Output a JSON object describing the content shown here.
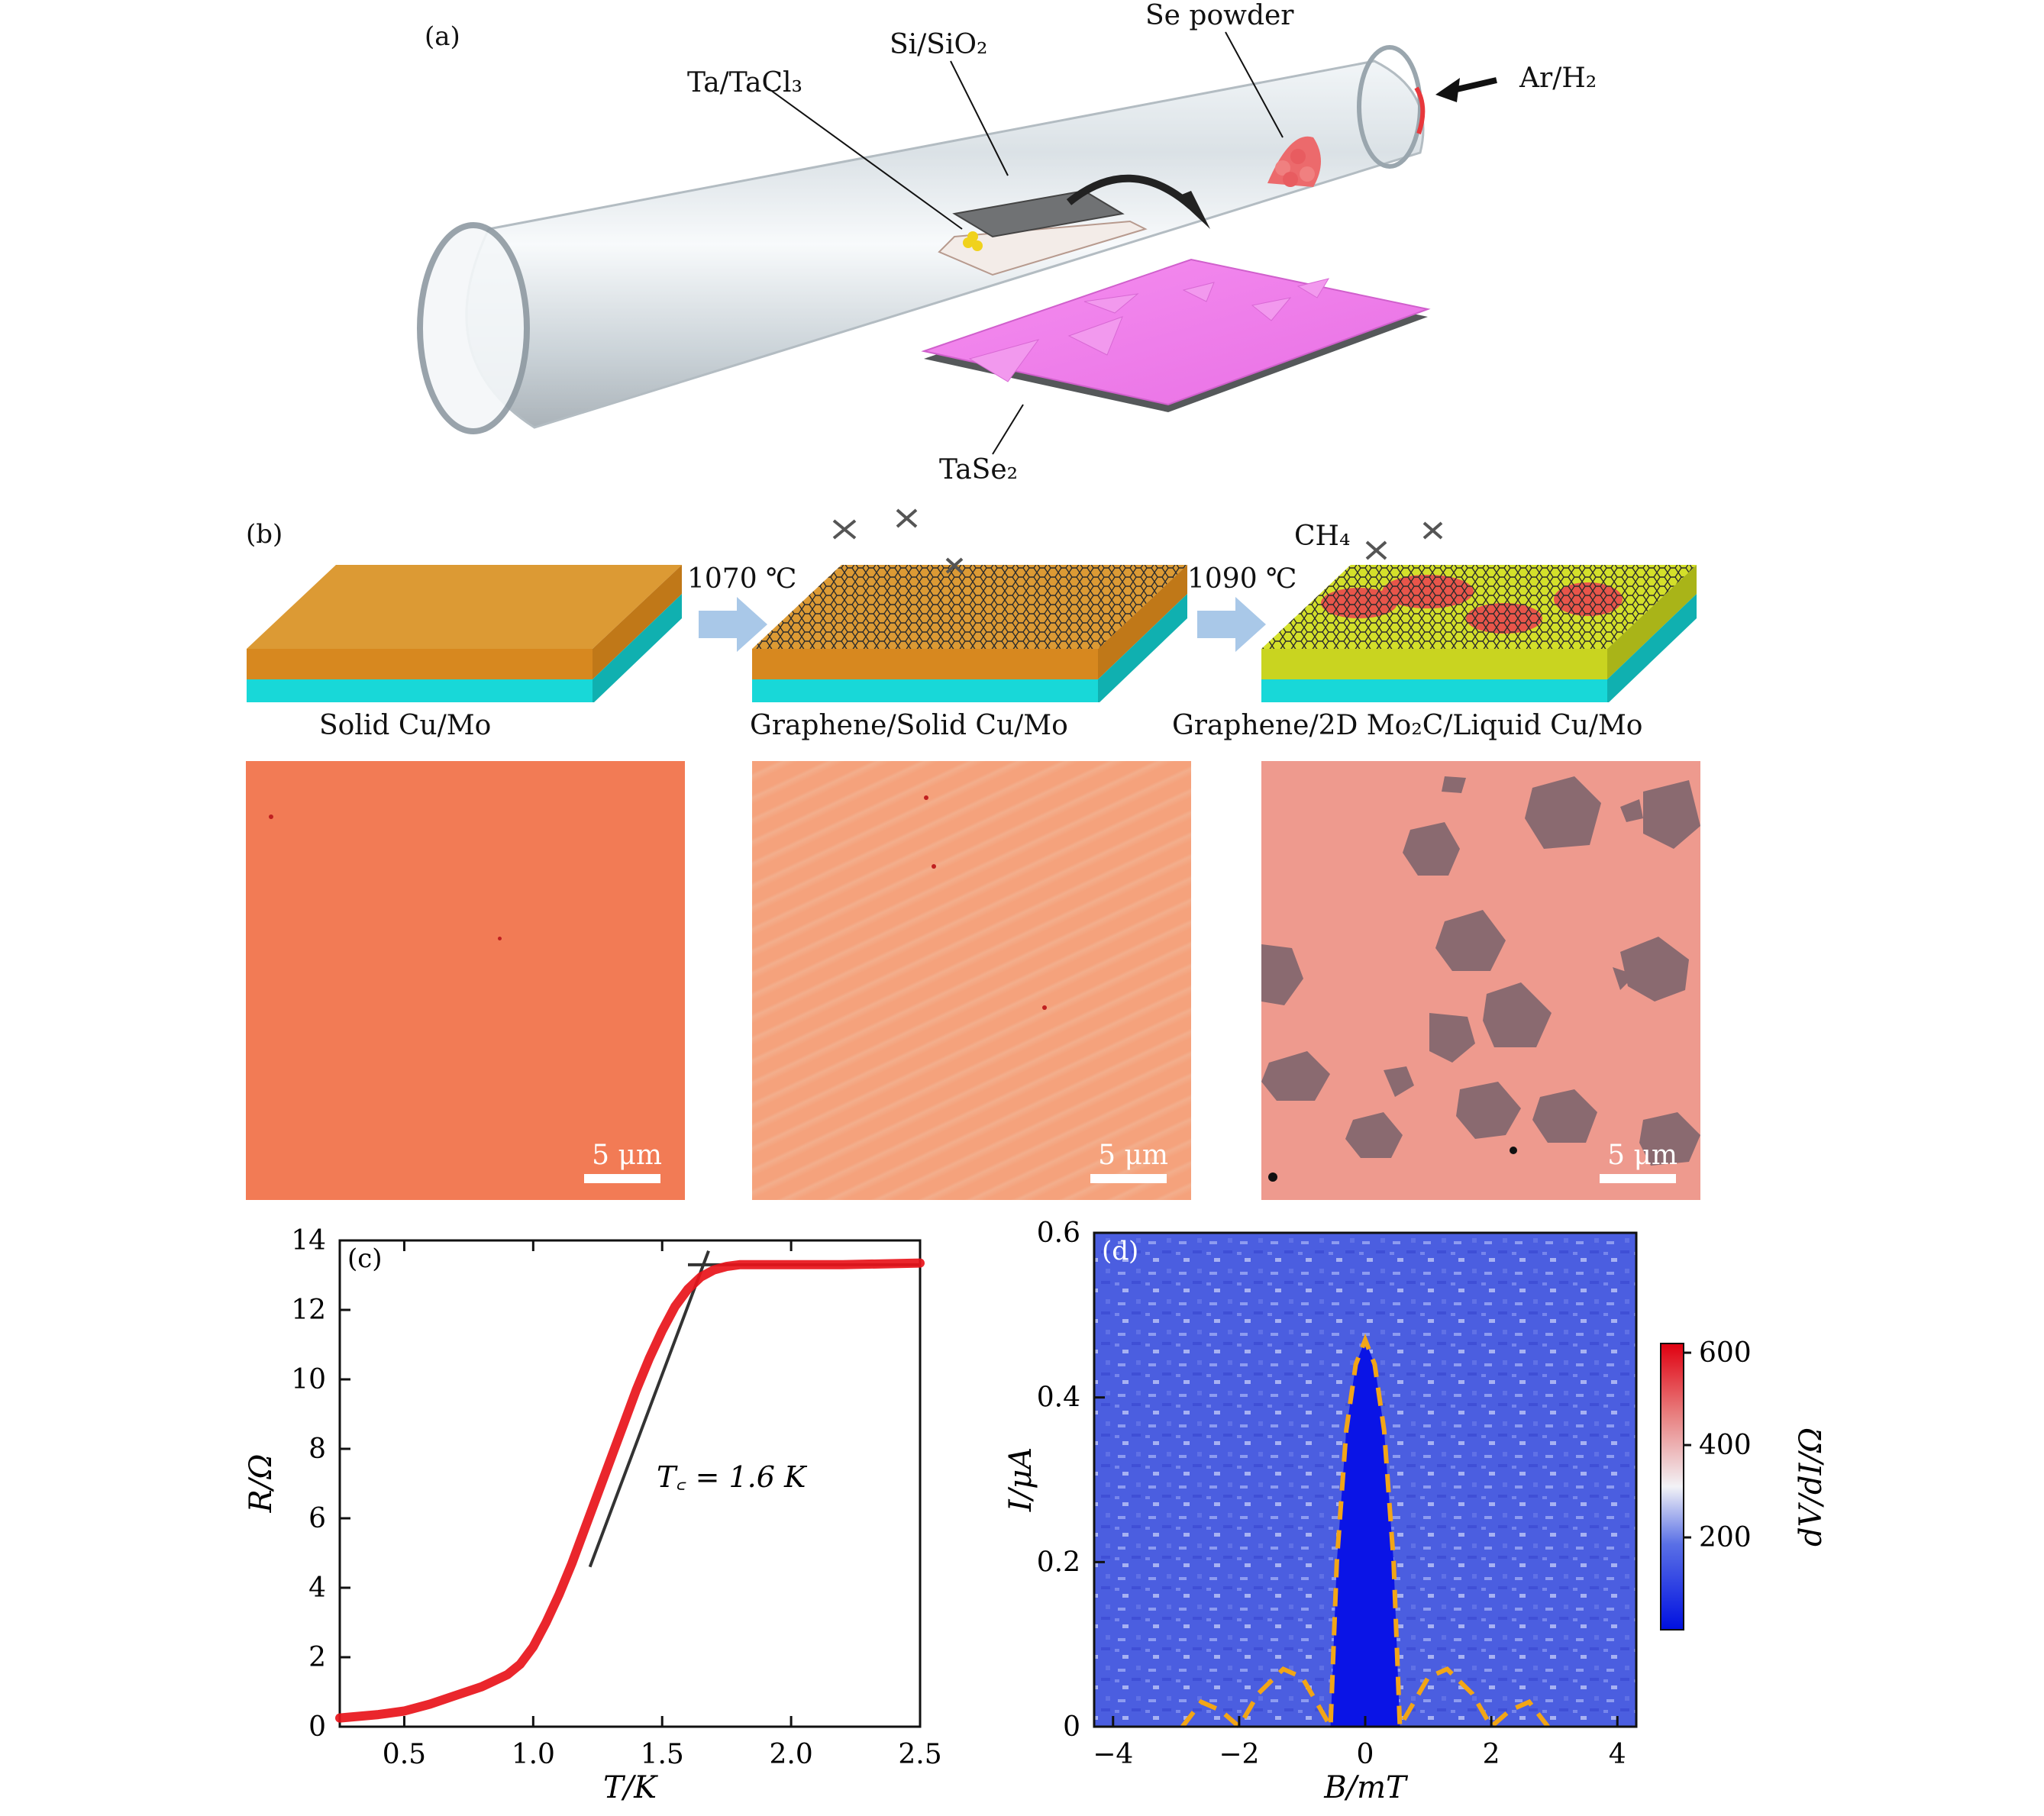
{
  "panel_a": {
    "tag": "(a)",
    "label_ta": "Ta/TaCl₃",
    "label_si": "Si/SiO₂",
    "label_se": "Se powder",
    "label_gas": "Ar/H₂",
    "label_product": "TaSe₂"
  },
  "panel_b": {
    "tag": "(b)",
    "temp1": "1070 ℃",
    "temp2": "1090 ℃",
    "gas": "CH₄",
    "stage1": "Solid Cu/Mo",
    "stage2": "Graphene/Solid Cu/Mo",
    "stage3": "Graphene/2D Mo₂C/Liquid Cu/Mo",
    "scale": "5 μm",
    "colors": {
      "copper": "#d9902e",
      "substrate": "#17d6d6",
      "liquid": "#d4e02a",
      "photo1": "#f27b55",
      "photo2": "#f4a07a",
      "photo3": "#ee9a8e",
      "flake": "#8a6a70"
    }
  },
  "panel_c": {
    "tag": "(c)",
    "annotation": "T꜀ = 1.6 K",
    "chart_data": {
      "type": "line",
      "xlabel": "T/K",
      "ylabel": "R/Ω",
      "xlim": [
        0.25,
        2.5
      ],
      "ylim": [
        0,
        14
      ],
      "xticks": [
        "0.5",
        "1.0",
        "1.5",
        "2.0",
        "2.5"
      ],
      "yticks": [
        "0",
        "2",
        "4",
        "6",
        "8",
        "10",
        "12",
        "14"
      ],
      "x": [
        0.25,
        0.4,
        0.5,
        0.6,
        0.7,
        0.8,
        0.9,
        0.95,
        1.0,
        1.05,
        1.1,
        1.15,
        1.2,
        1.25,
        1.3,
        1.35,
        1.4,
        1.45,
        1.5,
        1.55,
        1.6,
        1.65,
        1.7,
        1.75,
        1.8,
        1.9,
        2.0,
        2.2,
        2.5
      ],
      "y": [
        0.25,
        0.35,
        0.45,
        0.65,
        0.9,
        1.15,
        1.5,
        1.8,
        2.3,
        3.0,
        3.8,
        4.7,
        5.7,
        6.7,
        7.7,
        8.7,
        9.7,
        10.6,
        11.4,
        12.1,
        12.6,
        12.95,
        13.15,
        13.25,
        13.3,
        13.3,
        13.3,
        13.3,
        13.35
      ],
      "series_color": "#e8141a",
      "fit_lines": [
        {
          "x": [
            1.22,
            1.68
          ],
          "y": [
            4.6,
            13.7
          ]
        },
        {
          "x": [
            1.6,
            2.5
          ],
          "y": [
            13.3,
            13.3
          ]
        }
      ]
    }
  },
  "panel_d": {
    "tag": "(d)",
    "chart_data": {
      "type": "heatmap",
      "xlabel": "B/mT",
      "ylabel": "I/μA",
      "xlim": [
        -4.3,
        4.3
      ],
      "ylim": [
        0,
        0.6
      ],
      "xticks": [
        "−4",
        "−2",
        "0",
        "2",
        "4"
      ],
      "yticks": [
        "0",
        "0.2",
        "0.4",
        "0.6"
      ],
      "colorbar_label": "dV/dI/Ω",
      "colorbar_ticks": [
        "200",
        "400",
        "600"
      ],
      "colorbar_range": [
        0,
        620
      ],
      "dashed_envelope_color": "#f2a516",
      "envelope_B": [
        -2.9,
        -2.6,
        -2.3,
        -2.0,
        -1.7,
        -1.3,
        -1.0,
        -0.7,
        -0.55,
        -0.45,
        -0.3,
        -0.15,
        0,
        0.15,
        0.3,
        0.45,
        0.55,
        0.7,
        1.0,
        1.3,
        1.7,
        2.0,
        2.3,
        2.6,
        2.9
      ],
      "envelope_I": [
        0.0,
        0.03,
        0.02,
        0.0,
        0.04,
        0.07,
        0.06,
        0.02,
        0.0,
        0.2,
        0.36,
        0.44,
        0.47,
        0.44,
        0.36,
        0.2,
        0.0,
        0.02,
        0.06,
        0.07,
        0.04,
        0.0,
        0.02,
        0.03,
        0.0
      ]
    }
  }
}
